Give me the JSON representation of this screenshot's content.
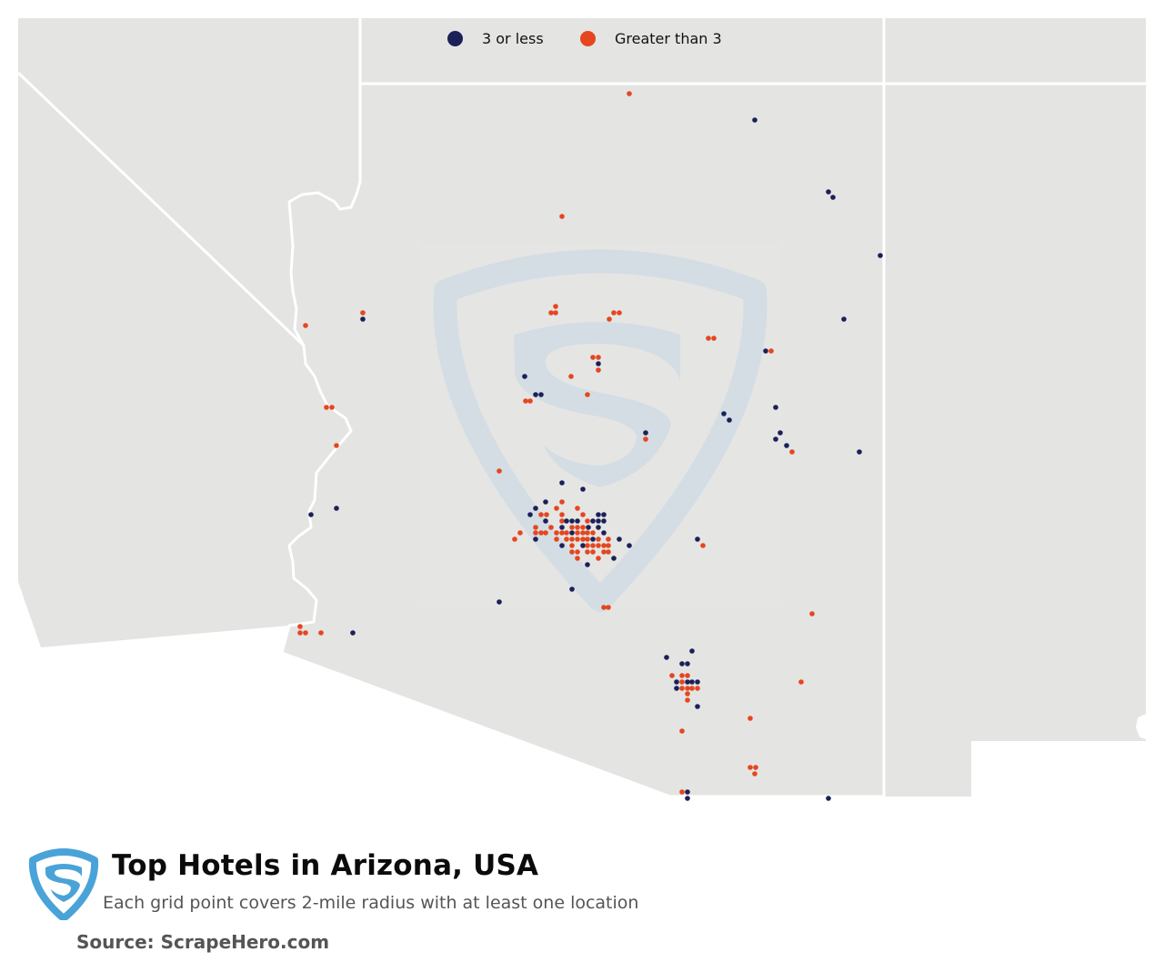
{
  "colors": {
    "low": "#1b2058",
    "high": "#e5461f",
    "land": "#e4e4e3",
    "border": "#ffffff",
    "watermark": "#d3dde4",
    "logo": "#4aa3d8"
  },
  "legend": {
    "items": [
      {
        "label": "3 or less",
        "color": "#1b2058"
      },
      {
        "label": "Greater than 3",
        "color": "#e5461f"
      }
    ]
  },
  "title": "Top Hotels in Arizona, USA",
  "subtitle": "Each grid point covers 2-mile radius with at least one location",
  "source": "Source: ScrapeHero.com",
  "map": {
    "region": "Arizona",
    "icons": [
      "scrapehero-watermark-icon",
      "scrapehero-logo-icon"
    ]
  }
}
